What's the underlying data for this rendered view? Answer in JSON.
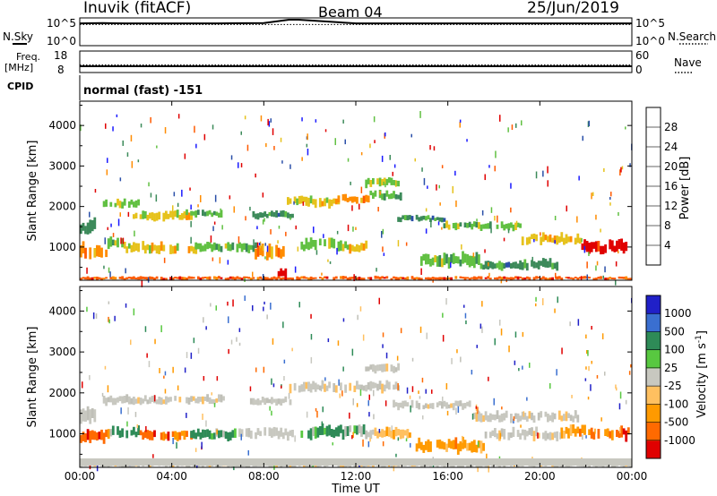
{
  "header": {
    "station": "Inuvik (fitACF)",
    "beam": "Beam 04",
    "date": "25/Jun/2019"
  },
  "side_labels": {
    "nsky": "N.Sky",
    "freq_line1": "Freq.",
    "freq_line2": "[MHz]",
    "cpid": "CPID",
    "nsearch": "N.Search",
    "nave": "Nave"
  },
  "cpid_text": "normal (fast) -151",
  "colors": {
    "power": [
      "#1a1aff",
      "#2a4fa8",
      "#3c8a5a",
      "#61c042",
      "#e6c21c",
      "#ff8c00",
      "#ff5a00",
      "#e00000"
    ],
    "velocity": [
      "#e00000",
      "#ff6a00",
      "#ff9a00",
      "#ffc060",
      "#c8c8c0",
      "#c0c0b8",
      "#2e8b57",
      "#58c840",
      "#3a6fd0",
      "#2020c8"
    ],
    "ground": "#c8c8c0"
  },
  "chart_data": [
    {
      "type": "line",
      "title": "N.Sky / N.Search",
      "left_ticks": [
        "10^5",
        "10^0"
      ],
      "right_ticks": [
        "10^5",
        "10^0"
      ],
      "series": [
        {
          "name": "N.Sky",
          "style": "solid",
          "x_hours": [
            0,
            1,
            2,
            4,
            6,
            8,
            9.1,
            9.5,
            12,
            16,
            20,
            24
          ],
          "level": [
            0.85,
            0.86,
            0.85,
            0.85,
            0.85,
            0.86,
            1.0,
            1.0,
            0.85,
            0.85,
            0.85,
            0.85
          ]
        },
        {
          "name": "N.Search",
          "style": "dotted",
          "x_hours": [
            0,
            24
          ],
          "level": [
            0.8,
            0.8
          ]
        }
      ]
    },
    {
      "type": "line",
      "title": "Freq. / Nave",
      "left_ticks": [
        "18",
        "8"
      ],
      "right_ticks": [
        "60",
        "0"
      ],
      "series": [
        {
          "name": "Freq. [MHz]",
          "style": "solid",
          "x_hours": [
            0,
            24
          ],
          "values": [
            10.5,
            10.5
          ]
        },
        {
          "name": "Nave",
          "style": "dotted",
          "x_hours": [
            0,
            24
          ],
          "values": [
            20,
            20
          ]
        }
      ]
    },
    {
      "type": "heatmap",
      "ylabel": "Slant Range [km]",
      "yticks": [
        1000,
        2000,
        3000,
        4000
      ],
      "ylim": [
        180,
        4600
      ],
      "xlim": [
        0,
        24
      ],
      "colorbar": {
        "label": "Power [dB]",
        "ticks": [
          4,
          8,
          12,
          16,
          20,
          24,
          28
        ]
      },
      "bands": [
        {
          "t0": 1.0,
          "t1": 2.6,
          "r": 2080,
          "w": 160,
          "c": 3
        },
        {
          "t0": 2.3,
          "t1": 4.8,
          "r": 1780,
          "w": 180,
          "c": 4
        },
        {
          "t0": 4.6,
          "t1": 6.1,
          "r": 1820,
          "w": 160,
          "c": 3
        },
        {
          "t0": 0.0,
          "t1": 0.7,
          "r": 1500,
          "w": 300,
          "c": 2
        },
        {
          "t0": 0.0,
          "t1": 1.2,
          "r": 920,
          "w": 260,
          "c": 5
        },
        {
          "t0": 1.2,
          "t1": 2.0,
          "r": 1080,
          "w": 220,
          "c": 3
        },
        {
          "t0": 2.0,
          "t1": 5.0,
          "r": 980,
          "w": 200,
          "c": 4
        },
        {
          "t0": 5.0,
          "t1": 7.6,
          "r": 1000,
          "w": 180,
          "c": 3
        },
        {
          "t0": 7.4,
          "t1": 9.2,
          "r": 1800,
          "w": 150,
          "c": 2
        },
        {
          "t0": 7.6,
          "t1": 8.8,
          "r": 860,
          "w": 320,
          "c": 5
        },
        {
          "t0": 8.4,
          "t1": 8.9,
          "r": 350,
          "w": 200,
          "c": 7
        },
        {
          "t0": 9.0,
          "t1": 11.2,
          "r": 2120,
          "w": 200,
          "c": 4
        },
        {
          "t0": 11.2,
          "t1": 12.6,
          "r": 2200,
          "w": 160,
          "c": 5
        },
        {
          "t0": 12.4,
          "t1": 13.8,
          "r": 2600,
          "w": 180,
          "c": 3
        },
        {
          "t0": 12.6,
          "t1": 14.0,
          "r": 2280,
          "w": 180,
          "c": 3
        },
        {
          "t0": 13.8,
          "t1": 15.8,
          "r": 1700,
          "w": 120,
          "c": 2
        },
        {
          "t0": 15.8,
          "t1": 19.2,
          "r": 1520,
          "w": 160,
          "c": 3
        },
        {
          "t0": 19.2,
          "t1": 21.8,
          "r": 1200,
          "w": 200,
          "c": 4
        },
        {
          "t0": 21.8,
          "t1": 23.9,
          "r": 1000,
          "w": 260,
          "c": 7
        },
        {
          "t0": 9.6,
          "t1": 11.4,
          "r": 1050,
          "w": 250,
          "c": 3
        },
        {
          "t0": 11.4,
          "t1": 12.4,
          "r": 1000,
          "w": 200,
          "c": 4
        },
        {
          "t0": 14.8,
          "t1": 17.4,
          "r": 680,
          "w": 260,
          "c": 3
        },
        {
          "t0": 17.4,
          "t1": 20.8,
          "r": 560,
          "w": 200,
          "c": 2
        },
        {
          "t0": 0.0,
          "t1": 24.0,
          "r": 230,
          "w": 70,
          "c": 6
        }
      ]
    },
    {
      "type": "heatmap",
      "ylabel": "Slant Range [km]",
      "yticks": [
        1000,
        2000,
        3000,
        4000
      ],
      "ylim": [
        180,
        4600
      ],
      "xlim": [
        0,
        24
      ],
      "xticks": [
        "00:00",
        "04:00",
        "08:00",
        "12:00",
        "16:00",
        "20:00",
        "00:00"
      ],
      "xlabel": "Time UT",
      "colorbar": {
        "label": "Velocity [m s",
        "ticks": [
          -1000,
          -500,
          -100,
          -25,
          25,
          100,
          500,
          1000
        ]
      },
      "bands": [
        {
          "t0": 1.0,
          "t1": 6.2,
          "r": 1830,
          "w": 170,
          "c": 4
        },
        {
          "t0": 0.0,
          "t1": 0.7,
          "r": 1450,
          "w": 300,
          "c": 4
        },
        {
          "t0": 0.0,
          "t1": 1.3,
          "r": 940,
          "w": 260,
          "c": 1
        },
        {
          "t0": 1.3,
          "t1": 2.6,
          "r": 1020,
          "w": 220,
          "c": 6
        },
        {
          "t0": 2.6,
          "t1": 4.8,
          "r": 980,
          "w": 200,
          "c": 1
        },
        {
          "t0": 4.8,
          "t1": 6.8,
          "r": 980,
          "w": 200,
          "c": 6
        },
        {
          "t0": 6.8,
          "t1": 9.2,
          "r": 1000,
          "w": 200,
          "c": 4
        },
        {
          "t0": 7.4,
          "t1": 9.2,
          "r": 1800,
          "w": 150,
          "c": 4
        },
        {
          "t0": 9.0,
          "t1": 13.8,
          "r": 2150,
          "w": 200,
          "c": 4
        },
        {
          "t0": 12.4,
          "t1": 13.8,
          "r": 2620,
          "w": 180,
          "c": 4
        },
        {
          "t0": 13.6,
          "t1": 17.0,
          "r": 1700,
          "w": 160,
          "c": 4
        },
        {
          "t0": 17.0,
          "t1": 21.8,
          "r": 1420,
          "w": 200,
          "c": 4
        },
        {
          "t0": 9.6,
          "t1": 12.4,
          "r": 1050,
          "w": 250,
          "c": 6
        },
        {
          "t0": 12.4,
          "t1": 14.4,
          "r": 1000,
          "w": 200,
          "c": 3
        },
        {
          "t0": 14.6,
          "t1": 17.6,
          "r": 700,
          "w": 260,
          "c": 2
        },
        {
          "t0": 17.6,
          "t1": 20.8,
          "r": 1000,
          "w": 220,
          "c": 4
        },
        {
          "t0": 20.8,
          "t1": 22.2,
          "r": 1050,
          "w": 240,
          "c": 2
        },
        {
          "t0": 22.2,
          "t1": 23.9,
          "r": 1000,
          "w": 250,
          "c": 1
        },
        {
          "t0": 0.0,
          "t1": 24.0,
          "r": 230,
          "w": 70,
          "c": 4
        }
      ]
    }
  ]
}
